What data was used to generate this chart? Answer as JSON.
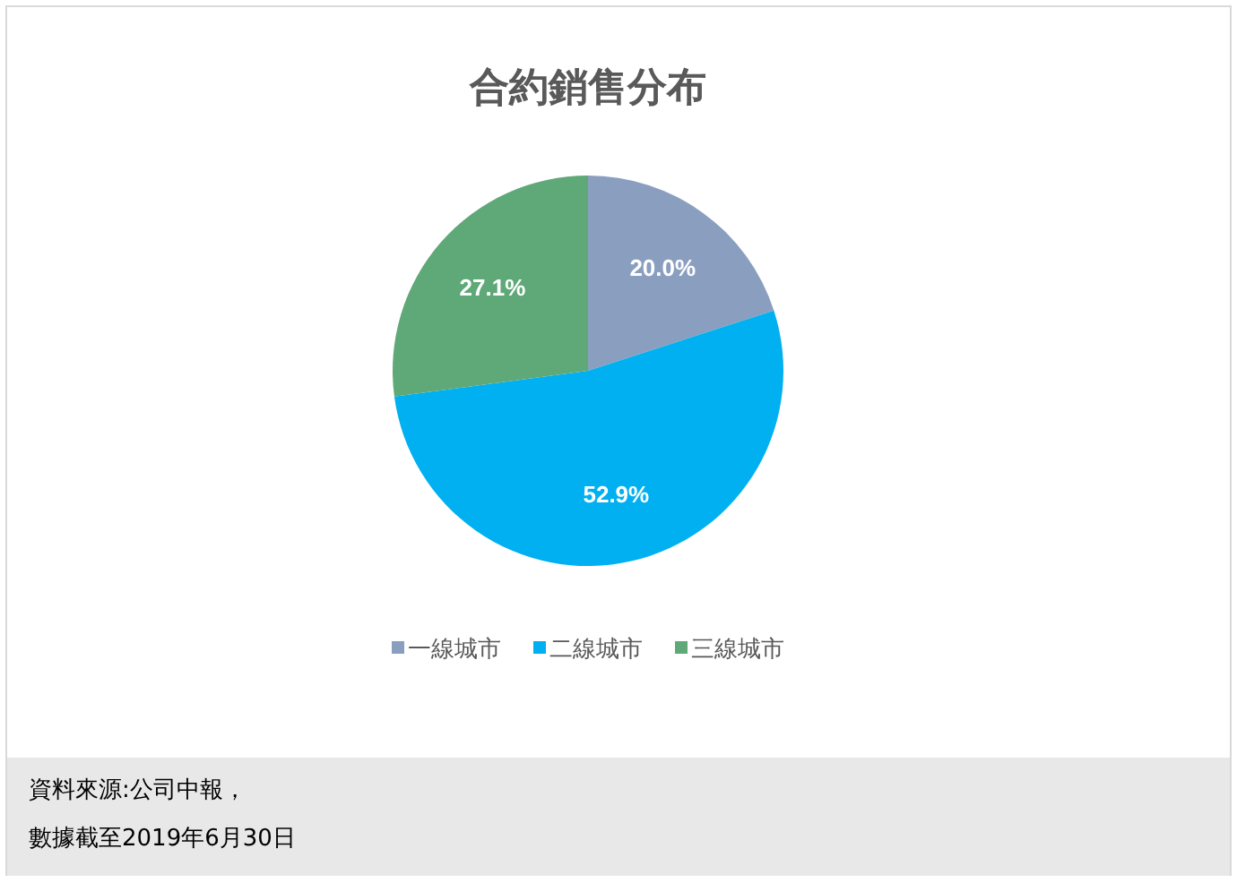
{
  "chart_data": {
    "type": "pie",
    "title": "合約銷售分布",
    "categories": [
      "一線城市",
      "二線城市",
      "三線城市"
    ],
    "values": [
      20.0,
      52.9,
      27.1
    ],
    "colors": [
      "#8a9fbf",
      "#00b0f0",
      "#5fa878"
    ],
    "value_labels": [
      "20.0%",
      "52.9%",
      "27.1%"
    ],
    "legend": "bottom",
    "annotations": [
      "資料來源:公司中報，",
      "數據截至2019年6月30日"
    ]
  }
}
